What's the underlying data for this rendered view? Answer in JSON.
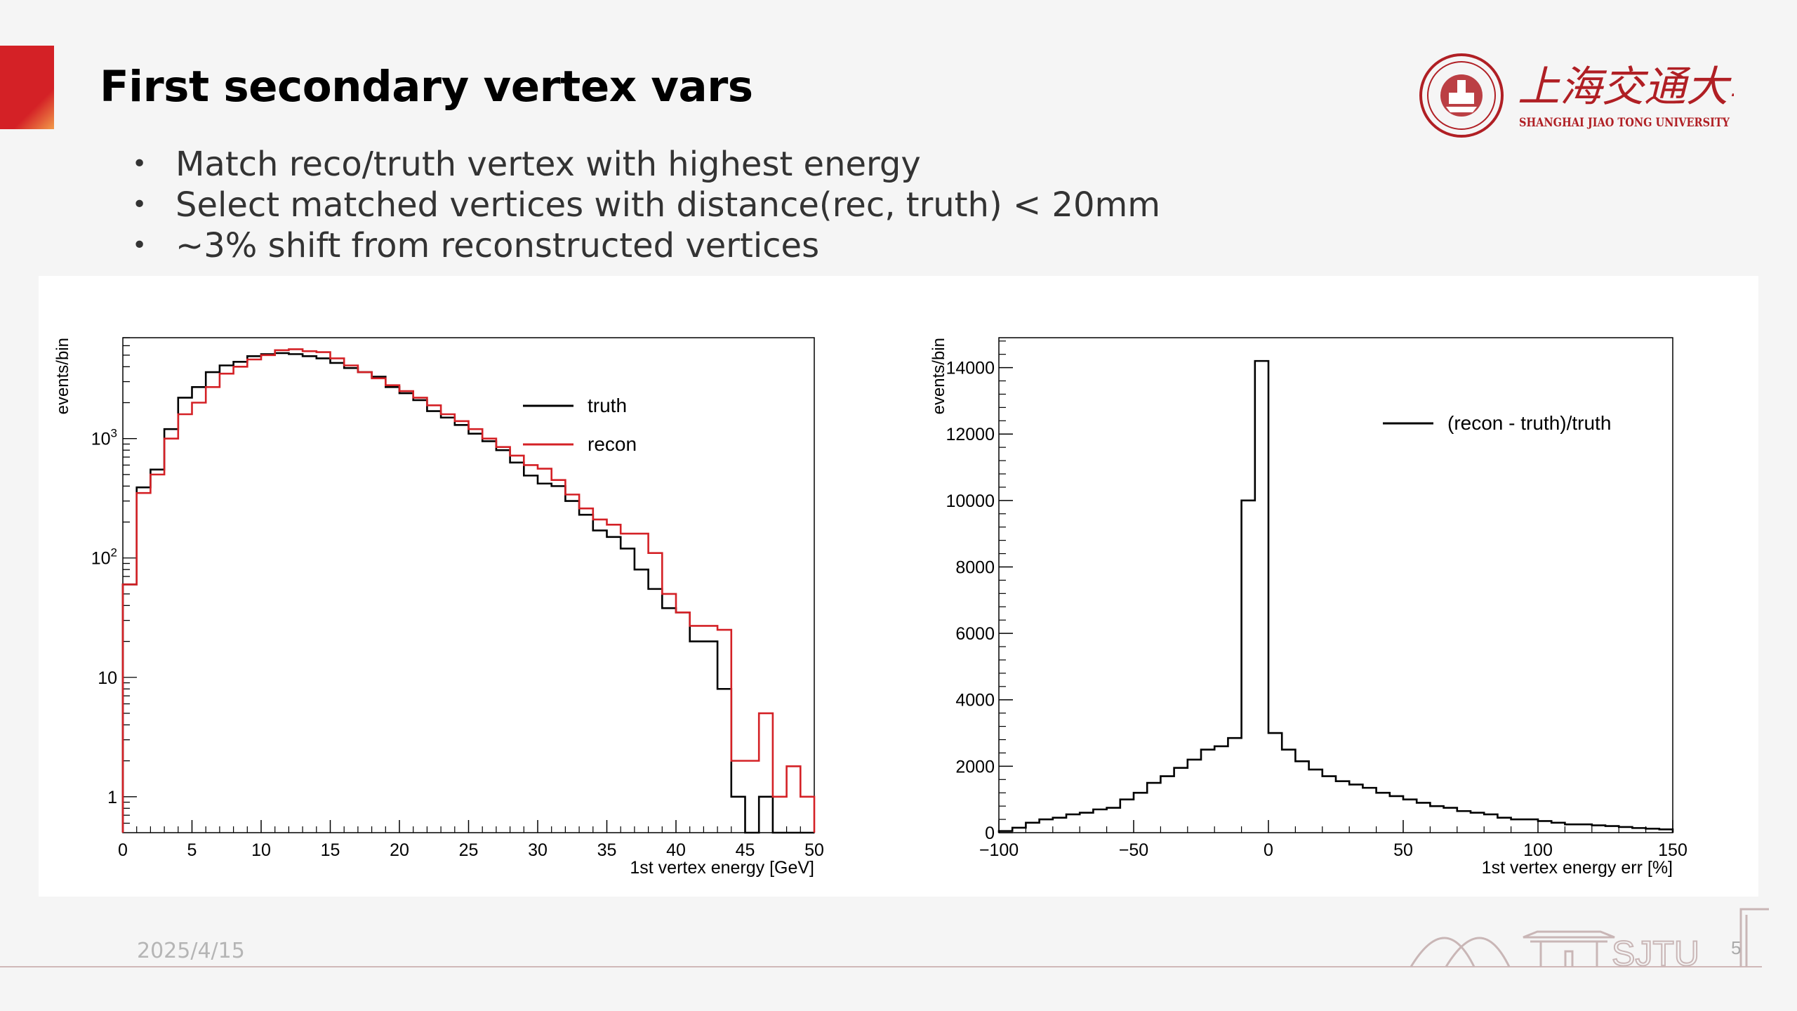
{
  "slide": {
    "title": "First secondary vertex vars",
    "bullets": [
      "Match reco/truth vertex with highest energy",
      "Select matched vertices with distance(rec, truth) < 20mm",
      "~3% shift from reconstructed vertices"
    ],
    "date": "2025/4/15",
    "page": "5",
    "accent_color": "#d42126",
    "brand_color": "#b01f24",
    "logo": {
      "name_cn": "上海交通大學",
      "name_en": "SHANGHAI JIAO TONG UNIVERSITY",
      "footer_mark": "SJTU"
    }
  },
  "chart_data": [
    {
      "type": "line",
      "step": true,
      "yscale": "log",
      "xlabel": "1st vertex energy [GeV]",
      "ylabel": "events/bin",
      "xlim": [
        0,
        50
      ],
      "ylim": [
        0.5,
        7000
      ],
      "xticks": [
        "0",
        "5",
        "10",
        "15",
        "20",
        "25",
        "30",
        "35",
        "40",
        "45",
        "50"
      ],
      "yticks": [
        {
          "value": 1,
          "label": "1",
          "sup": ""
        },
        {
          "value": 10,
          "label": "10",
          "sup": ""
        },
        {
          "value": 100,
          "label": "10",
          "sup": "2"
        },
        {
          "value": 1000,
          "label": "10",
          "sup": "3"
        }
      ],
      "legend_position": "top-right",
      "bin_width": 1,
      "series": [
        {
          "name": "truth",
          "color": "#000000",
          "values": [
            60,
            390,
            550,
            1200,
            2200,
            2700,
            3600,
            4100,
            4400,
            4900,
            5100,
            5200,
            5100,
            4900,
            4700,
            4300,
            3900,
            3600,
            3300,
            2700,
            2400,
            2100,
            1700,
            1500,
            1300,
            1100,
            950,
            800,
            630,
            490,
            420,
            400,
            300,
            230,
            170,
            150,
            120,
            80,
            55,
            38,
            35,
            20,
            20,
            8,
            1,
            0,
            1,
            0,
            0,
            0
          ]
        },
        {
          "name": "recon",
          "color": "#d42126",
          "values": [
            60,
            350,
            500,
            1000,
            1600,
            2000,
            2700,
            3500,
            4000,
            4600,
            5000,
            5500,
            5600,
            5400,
            5300,
            4700,
            4100,
            3600,
            3200,
            2800,
            2500,
            2200,
            1900,
            1600,
            1400,
            1200,
            1000,
            850,
            720,
            600,
            560,
            450,
            340,
            260,
            210,
            190,
            160,
            160,
            110,
            50,
            35,
            27,
            27,
            25,
            2,
            2,
            5,
            1,
            1.8,
            1
          ]
        }
      ]
    },
    {
      "type": "line",
      "step": true,
      "yscale": "linear",
      "xlabel": "1st vertex energy err [%]",
      "ylabel": "events/bin",
      "xlim": [
        -100,
        150
      ],
      "ylim": [
        0,
        14900
      ],
      "xticks": [
        "−100",
        "−50",
        "0",
        "50",
        "100",
        "150"
      ],
      "yticks": [
        "0",
        "2000",
        "4000",
        "6000",
        "8000",
        "10000",
        "12000",
        "14000"
      ],
      "legend_position": "top-right",
      "bin_edges": [
        -100,
        -95,
        -90,
        -85,
        -80,
        -75,
        -70,
        -65,
        -60,
        -55,
        -50,
        -45,
        -40,
        -35,
        -30,
        -25,
        -20,
        -15,
        -10,
        -5,
        0,
        5,
        10,
        15,
        20,
        25,
        30,
        35,
        40,
        45,
        50,
        55,
        60,
        65,
        70,
        75,
        80,
        85,
        90,
        95,
        100,
        105,
        110,
        115,
        120,
        125,
        130,
        135,
        140,
        145,
        150
      ],
      "series": [
        {
          "name": "(recon - truth)/truth",
          "color": "#000000",
          "values": [
            50,
            150,
            300,
            400,
            450,
            550,
            600,
            700,
            750,
            1000,
            1200,
            1500,
            1700,
            1950,
            2200,
            2500,
            2600,
            2850,
            10000,
            14200,
            3000,
            2500,
            2150,
            1900,
            1700,
            1550,
            1450,
            1350,
            1200,
            1100,
            1000,
            900,
            800,
            750,
            650,
            600,
            550,
            450,
            400,
            400,
            350,
            300,
            250,
            250,
            220,
            200,
            170,
            140,
            120,
            100
          ]
        }
      ]
    }
  ]
}
